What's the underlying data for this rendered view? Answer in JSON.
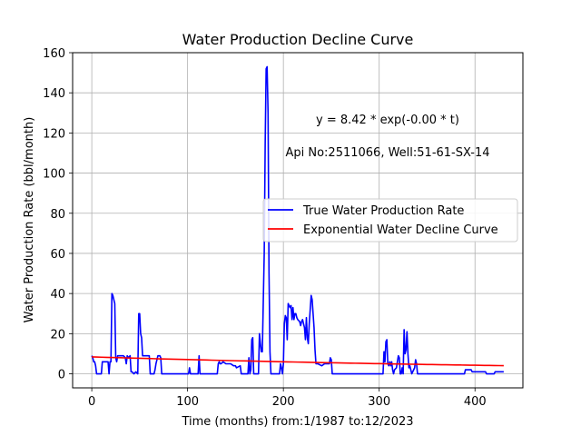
{
  "chart_data": {
    "type": "line",
    "title": "Water Production Decline Curve",
    "xlabel": "Time (months) from:1/1987 to:12/2023",
    "ylabel": "Water Production Rate (bbl/month)",
    "xlim": [
      -20,
      450
    ],
    "ylim": [
      -7,
      160
    ],
    "xticks": [
      0,
      100,
      200,
      300,
      400
    ],
    "yticks": [
      0,
      20,
      40,
      60,
      80,
      100,
      120,
      140,
      160
    ],
    "grid": true,
    "legend_position": "center-right",
    "annotations": [
      "y = 8.42 * exp(-0.00 * t)",
      "Api No:2511066, Well:51-61-SX-14"
    ],
    "series": [
      {
        "name": "True Water Production Rate",
        "color": "#0000ff",
        "points": [
          [
            0,
            9
          ],
          [
            1,
            8
          ],
          [
            2,
            6
          ],
          [
            3,
            6
          ],
          [
            4,
            4
          ],
          [
            5,
            0
          ],
          [
            8,
            0
          ],
          [
            10,
            0
          ],
          [
            11,
            6
          ],
          [
            15,
            6
          ],
          [
            17,
            6
          ],
          [
            18,
            0
          ],
          [
            19,
            6
          ],
          [
            20,
            6
          ],
          [
            21,
            40
          ],
          [
            22,
            39
          ],
          [
            23,
            37
          ],
          [
            24,
            35
          ],
          [
            25,
            8
          ],
          [
            26,
            6
          ],
          [
            27,
            9
          ],
          [
            30,
            9
          ],
          [
            33,
            9
          ],
          [
            35,
            8
          ],
          [
            36,
            5
          ],
          [
            37,
            9
          ],
          [
            38,
            8
          ],
          [
            40,
            9
          ],
          [
            41,
            1
          ],
          [
            42,
            1
          ],
          [
            44,
            0
          ],
          [
            46,
            1
          ],
          [
            48,
            0
          ],
          [
            49,
            30
          ],
          [
            50,
            30
          ],
          [
            51,
            20
          ],
          [
            52,
            18
          ],
          [
            53,
            9
          ],
          [
            57,
            9
          ],
          [
            60,
            9
          ],
          [
            61,
            0
          ],
          [
            65,
            0
          ],
          [
            66,
            2
          ],
          [
            67,
            5
          ],
          [
            68,
            7
          ],
          [
            69,
            9
          ],
          [
            70,
            9
          ],
          [
            71,
            9
          ],
          [
            72,
            8
          ],
          [
            73,
            0
          ],
          [
            80,
            0
          ],
          [
            90,
            0
          ],
          [
            100,
            0
          ],
          [
            101,
            0
          ],
          [
            102,
            3
          ],
          [
            103,
            0
          ],
          [
            110,
            0
          ],
          [
            111,
            0
          ],
          [
            112,
            9
          ],
          [
            113,
            0
          ],
          [
            120,
            0
          ],
          [
            130,
            0
          ],
          [
            131,
            0
          ],
          [
            132,
            5
          ],
          [
            133,
            6
          ],
          [
            134,
            5
          ],
          [
            135,
            5
          ],
          [
            137,
            6
          ],
          [
            140,
            5
          ],
          [
            145,
            5
          ],
          [
            148,
            4
          ],
          [
            150,
            4
          ],
          [
            151,
            3
          ],
          [
            155,
            4
          ],
          [
            156,
            0
          ],
          [
            160,
            0
          ],
          [
            163,
            0
          ],
          [
            164,
            8
          ],
          [
            165,
            0
          ],
          [
            166,
            2
          ],
          [
            167,
            17
          ],
          [
            168,
            18
          ],
          [
            169,
            0
          ],
          [
            172,
            0
          ],
          [
            174,
            0
          ],
          [
            175,
            20
          ],
          [
            176,
            15
          ],
          [
            177,
            11
          ],
          [
            178,
            11
          ],
          [
            180,
            60
          ],
          [
            181,
            115
          ],
          [
            182,
            152
          ],
          [
            183,
            153
          ],
          [
            184,
            130
          ],
          [
            185,
            50
          ],
          [
            186,
            11
          ],
          [
            187,
            0
          ],
          [
            190,
            0
          ],
          [
            195,
            0
          ],
          [
            196,
            0
          ],
          [
            197,
            5
          ],
          [
            198,
            3
          ],
          [
            199,
            0
          ],
          [
            200,
            5
          ],
          [
            201,
            25
          ],
          [
            202,
            29
          ],
          [
            203,
            28
          ],
          [
            204,
            17
          ],
          [
            205,
            35
          ],
          [
            206,
            34
          ],
          [
            207,
            33
          ],
          [
            208,
            34
          ],
          [
            209,
            27
          ],
          [
            210,
            33
          ],
          [
            211,
            27
          ],
          [
            212,
            30
          ],
          [
            213,
            30
          ],
          [
            214,
            28
          ],
          [
            215,
            27
          ],
          [
            217,
            26
          ],
          [
            218,
            24
          ],
          [
            219,
            26
          ],
          [
            220,
            27
          ],
          [
            221,
            25
          ],
          [
            222,
            23
          ],
          [
            223,
            17
          ],
          [
            224,
            28
          ],
          [
            225,
            18
          ],
          [
            226,
            15
          ],
          [
            227,
            25
          ],
          [
            228,
            32
          ],
          [
            229,
            39
          ],
          [
            230,
            37
          ],
          [
            231,
            30
          ],
          [
            232,
            23
          ],
          [
            233,
            12
          ],
          [
            234,
            5
          ],
          [
            236,
            5
          ],
          [
            240,
            4
          ],
          [
            243,
            5
          ],
          [
            246,
            5
          ],
          [
            248,
            5
          ],
          [
            249,
            8
          ],
          [
            250,
            7
          ],
          [
            251,
            0
          ],
          [
            260,
            0
          ],
          [
            270,
            0
          ],
          [
            280,
            0
          ],
          [
            290,
            0
          ],
          [
            300,
            0
          ],
          [
            303,
            0
          ],
          [
            304,
            0
          ],
          [
            305,
            11
          ],
          [
            306,
            6
          ],
          [
            307,
            16
          ],
          [
            308,
            17
          ],
          [
            309,
            5
          ],
          [
            310,
            4
          ],
          [
            311,
            6
          ],
          [
            312,
            4
          ],
          [
            313,
            6
          ],
          [
            314,
            2
          ],
          [
            315,
            0
          ],
          [
            316,
            2
          ],
          [
            318,
            3
          ],
          [
            320,
            9
          ],
          [
            321,
            8
          ],
          [
            322,
            0
          ],
          [
            323,
            0
          ],
          [
            324,
            3
          ],
          [
            325,
            0
          ],
          [
            326,
            22
          ],
          [
            327,
            10
          ],
          [
            328,
            12
          ],
          [
            329,
            21
          ],
          [
            330,
            10
          ],
          [
            331,
            3
          ],
          [
            332,
            4
          ],
          [
            334,
            0
          ],
          [
            336,
            2
          ],
          [
            337,
            3
          ],
          [
            338,
            7
          ],
          [
            339,
            5
          ],
          [
            340,
            0
          ],
          [
            350,
            0
          ],
          [
            360,
            0
          ],
          [
            370,
            0
          ],
          [
            380,
            0
          ],
          [
            389,
            0
          ],
          [
            390,
            2
          ],
          [
            394,
            2
          ],
          [
            396,
            2
          ],
          [
            397,
            1
          ],
          [
            405,
            1
          ],
          [
            410,
            1
          ],
          [
            411,
            1
          ],
          [
            412,
            0
          ],
          [
            415,
            0
          ],
          [
            420,
            0
          ],
          [
            421,
            1
          ],
          [
            425,
            1
          ],
          [
            430,
            1
          ]
        ]
      },
      {
        "name": "Exponential Water Decline Curve",
        "color": "#ff0000",
        "model": {
          "a": 8.42,
          "b": 0.0017
        },
        "x_range": [
          0,
          430
        ]
      }
    ]
  }
}
